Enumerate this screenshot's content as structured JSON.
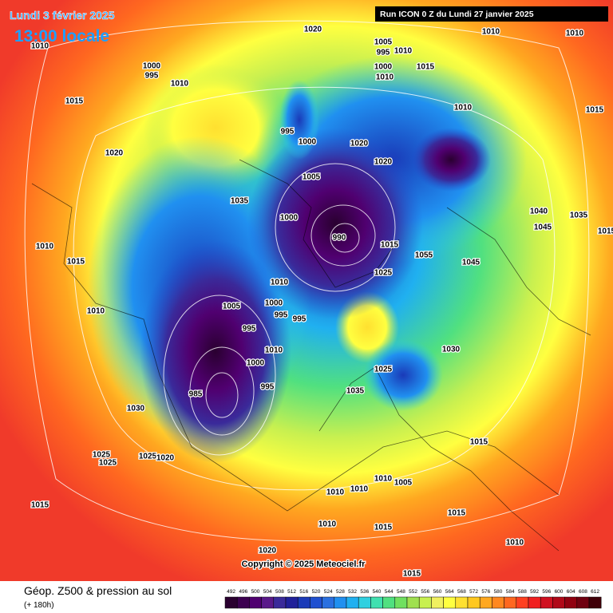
{
  "header": {
    "date": "Lundi 3 février 2025",
    "time": "13:00 locale",
    "run": "Run ICON 0 Z du Lundi 27 janvier 2025"
  },
  "copyright": "Copyright © 2025 Meteociel.fr",
  "footer": {
    "title": "Géop. Z500 & pression au sol",
    "lead": "(+ 180h)"
  },
  "legend": {
    "values": [
      492,
      496,
      500,
      504,
      508,
      512,
      516,
      520,
      524,
      528,
      532,
      536,
      540,
      544,
      548,
      552,
      556,
      560,
      564,
      568,
      572,
      576,
      580,
      584,
      588,
      592,
      596,
      600,
      604,
      608,
      612
    ],
    "colors": [
      "#2a0030",
      "#3c0050",
      "#500070",
      "#5a1a8a",
      "#3a2a9a",
      "#20209a",
      "#1a3ab8",
      "#2050d0",
      "#2a70e0",
      "#2090f0",
      "#20b0f0",
      "#30d0e0",
      "#40e0b0",
      "#50e080",
      "#70e060",
      "#a0e050",
      "#c8f050",
      "#f0f060",
      "#ffff40",
      "#ffe030",
      "#ffc820",
      "#ffa820",
      "#ff8820",
      "#ff6820",
      "#ff4020",
      "#f02020",
      "#d01020",
      "#b00818",
      "#900010",
      "#700010",
      "#400008"
    ]
  },
  "pressure_labels": [
    "1020",
    "1010",
    "1010",
    "1010",
    "1005",
    "995",
    "1010",
    "1000",
    "995",
    "1010",
    "1015",
    "1000",
    "1010",
    "1015",
    "1010",
    "1015",
    "995",
    "1000",
    "1020",
    "1020",
    "1020",
    "1005",
    "1035",
    "1000",
    "1040",
    "1035",
    "1045",
    "990",
    "1015",
    "1055",
    "1015",
    "1045",
    "1010",
    "1015",
    "1025",
    "1010",
    "1005",
    "1000",
    "995",
    "995",
    "995",
    "1010",
    "1000",
    "995",
    "985",
    "1030",
    "1025",
    "1035",
    "1030",
    "1010",
    "1025",
    "1025",
    "1025",
    "1020",
    "1015",
    "1010",
    "1010",
    "1005",
    "1010",
    "1010",
    "1015",
    "1015",
    "1020",
    "1015",
    "1010",
    "1015"
  ]
}
